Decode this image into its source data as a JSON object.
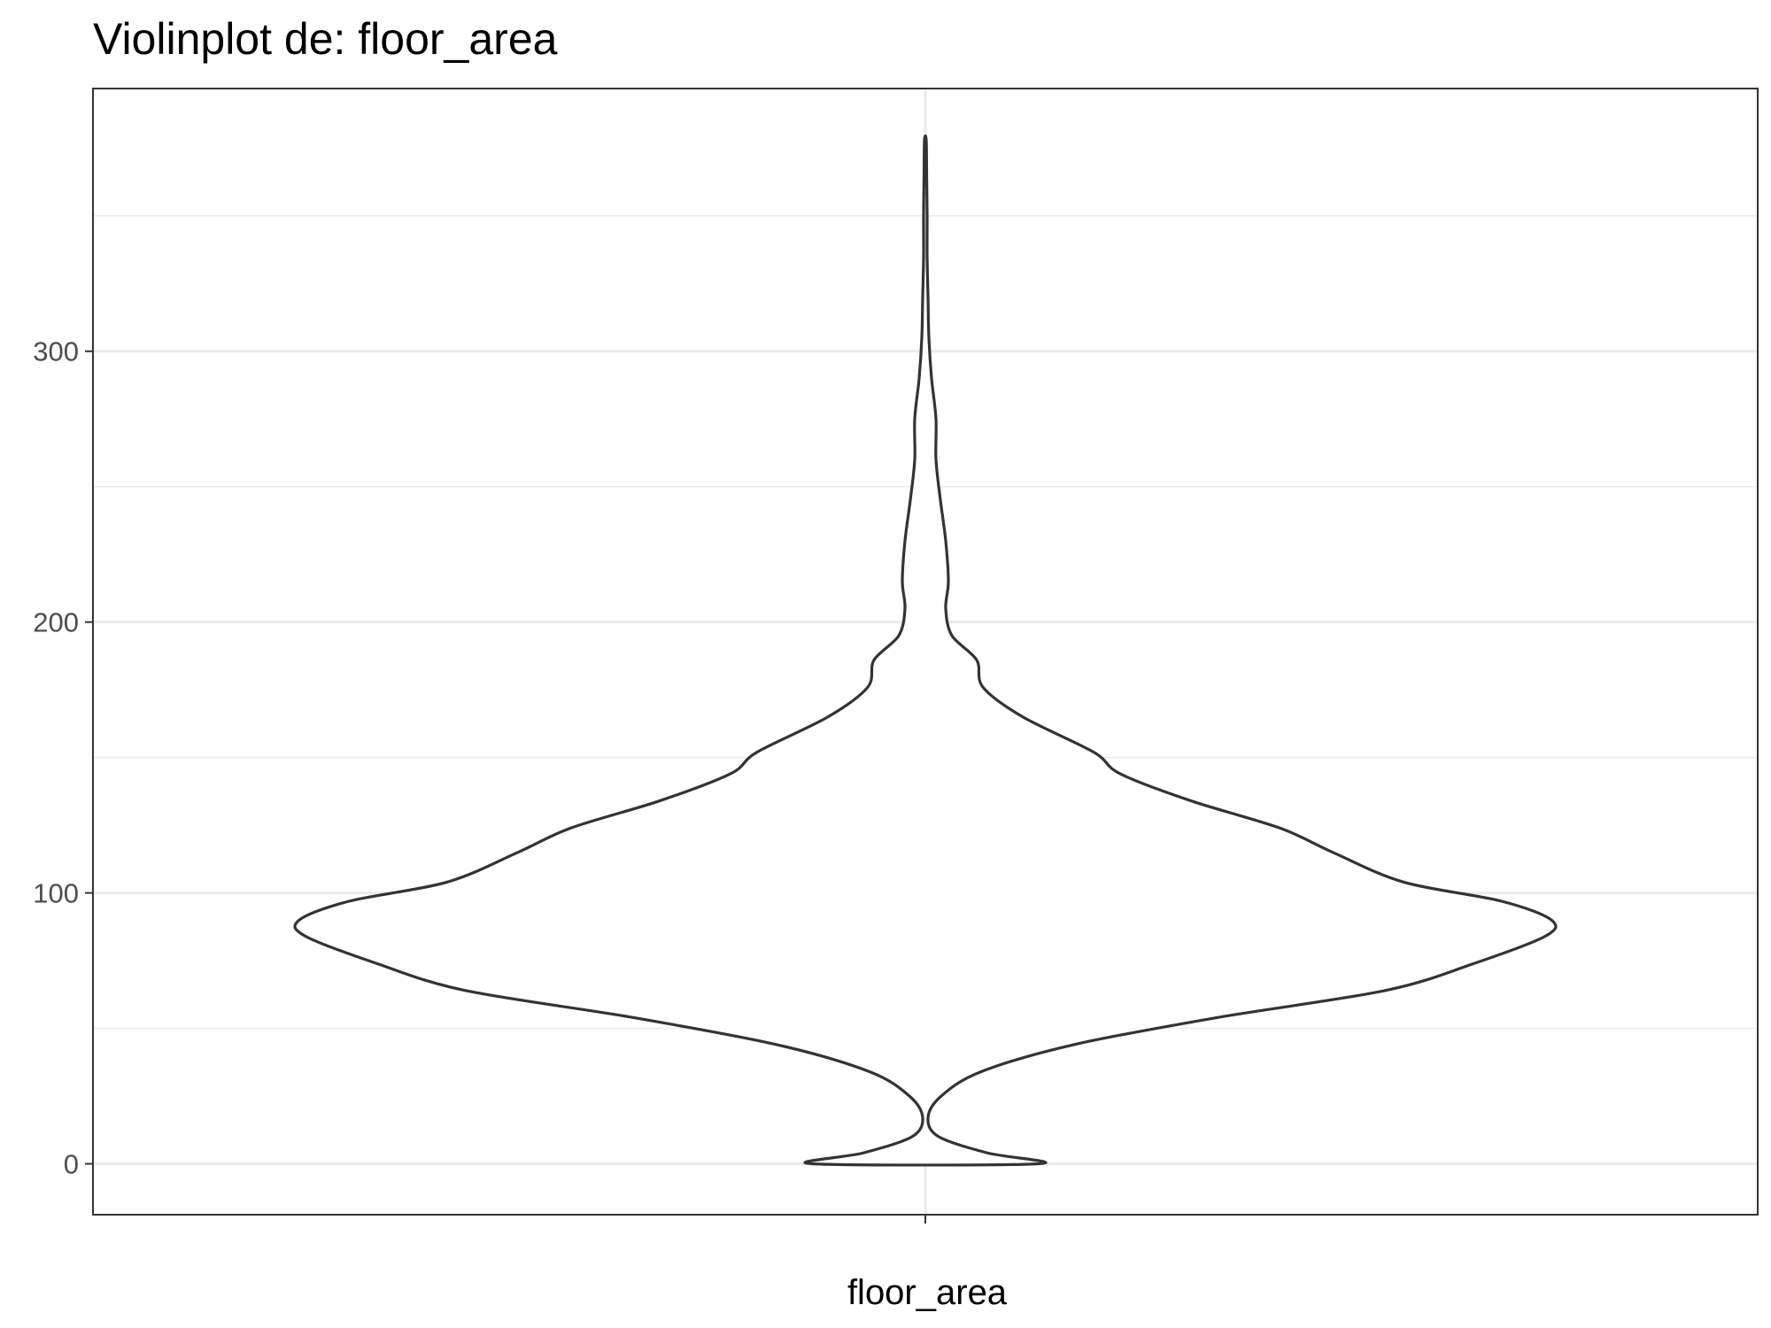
{
  "chart_data": {
    "type": "violin",
    "title": "Violinplot de: floor_area",
    "xlabel": "floor_area",
    "ylabel": "",
    "categories": [
      "floor_area"
    ],
    "ylim": [
      -18.8,
      397
    ],
    "y_ticks": [
      0,
      100,
      200,
      300
    ],
    "y_tick_labels": [
      "0",
      "100",
      "200",
      "300"
    ],
    "grid": true,
    "outline_color": "#333333",
    "fill_color": "#ffffff",
    "density_profile": [
      {
        "y": 0,
        "half_width": 128
      },
      {
        "y": 4,
        "half_width": 70
      },
      {
        "y": 10,
        "half_width": 15
      },
      {
        "y": 17,
        "half_width": 3
      },
      {
        "y": 25,
        "half_width": 18
      },
      {
        "y": 34,
        "half_width": 63
      },
      {
        "y": 44,
        "half_width": 168
      },
      {
        "y": 54,
        "half_width": 330
      },
      {
        "y": 64,
        "half_width": 520
      },
      {
        "y": 74,
        "half_width": 620
      },
      {
        "y": 84,
        "half_width": 700
      },
      {
        "y": 90,
        "half_width": 707
      },
      {
        "y": 97,
        "half_width": 650
      },
      {
        "y": 104,
        "half_width": 540
      },
      {
        "y": 115,
        "half_width": 460
      },
      {
        "y": 124,
        "half_width": 400
      },
      {
        "y": 134,
        "half_width": 300
      },
      {
        "y": 144,
        "half_width": 220
      },
      {
        "y": 152,
        "half_width": 190
      },
      {
        "y": 165,
        "half_width": 110
      },
      {
        "y": 176,
        "half_width": 65
      },
      {
        "y": 186,
        "half_width": 58
      },
      {
        "y": 195,
        "half_width": 30
      },
      {
        "y": 205,
        "half_width": 23
      },
      {
        "y": 215,
        "half_width": 26
      },
      {
        "y": 230,
        "half_width": 23
      },
      {
        "y": 245,
        "half_width": 17
      },
      {
        "y": 260,
        "half_width": 12
      },
      {
        "y": 275,
        "half_width": 12
      },
      {
        "y": 290,
        "half_width": 7
      },
      {
        "y": 305,
        "half_width": 4
      },
      {
        "y": 320,
        "half_width": 3
      },
      {
        "y": 335,
        "half_width": 2
      },
      {
        "y": 350,
        "half_width": 2
      },
      {
        "y": 365,
        "half_width": 1.5
      },
      {
        "y": 378,
        "half_width": 1
      }
    ]
  }
}
